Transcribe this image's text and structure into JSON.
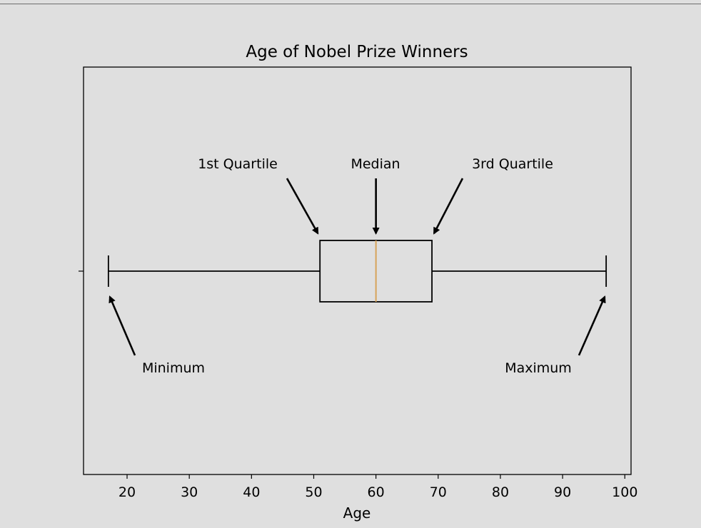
{
  "chart_data": {
    "type": "box",
    "title": "Age of Nobel Prize Winners",
    "xlabel": "Age",
    "ylabel": "",
    "xlim": [
      13,
      101
    ],
    "xticks": [
      20,
      30,
      40,
      50,
      60,
      70,
      80,
      90,
      100
    ],
    "grid": false,
    "box": {
      "min": 17,
      "q1": 51,
      "median": 60,
      "q3": 69,
      "max": 97
    },
    "annotations": [
      {
        "text": "1st Quartile",
        "points_to": "q1"
      },
      {
        "text": "Median",
        "points_to": "median"
      },
      {
        "text": "3rd Quartile",
        "points_to": "q3"
      },
      {
        "text": "Minimum",
        "points_to": "min"
      },
      {
        "text": "Maximum",
        "points_to": "max"
      }
    ],
    "colors": {
      "background": "#dfdfdf",
      "median_line": "#d6a35a",
      "box_edge": "#000000"
    }
  }
}
